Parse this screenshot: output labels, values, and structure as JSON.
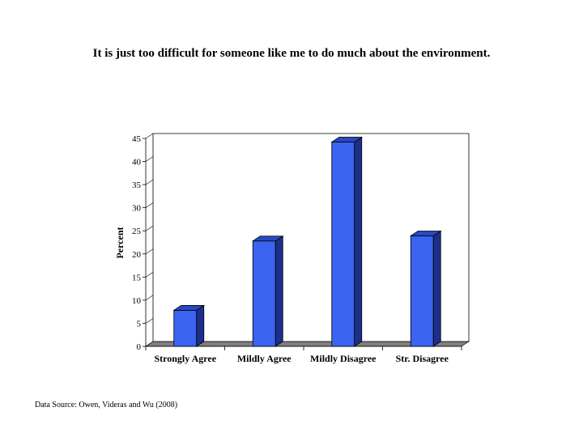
{
  "page": {
    "title": "It is just too difficult for someone like me to do much about the environment.",
    "source": "Data Source: Owen, Videras and Wu (2008)"
  },
  "chart_data": {
    "type": "bar",
    "style": "3d",
    "title": "It is just too difficult for someone like me to do much about the environment.",
    "xlabel": "",
    "ylabel": "Percent",
    "categories": [
      "Strongly Agree",
      "Mildly Agree",
      "Mildly Disagree",
      "Str. Disagree"
    ],
    "values": [
      7.8,
      22.8,
      44.2,
      23.9
    ],
    "ylim": [
      0,
      45
    ],
    "yticks": [
      0,
      5,
      10,
      15,
      20,
      25,
      30,
      35,
      40,
      45
    ],
    "grid": false,
    "legend": "none",
    "colors": {
      "bar_front": "#3a63f0",
      "bar_side": "#1c2f8c",
      "bar_top": "#2a48c4",
      "floor": "#808080"
    }
  }
}
